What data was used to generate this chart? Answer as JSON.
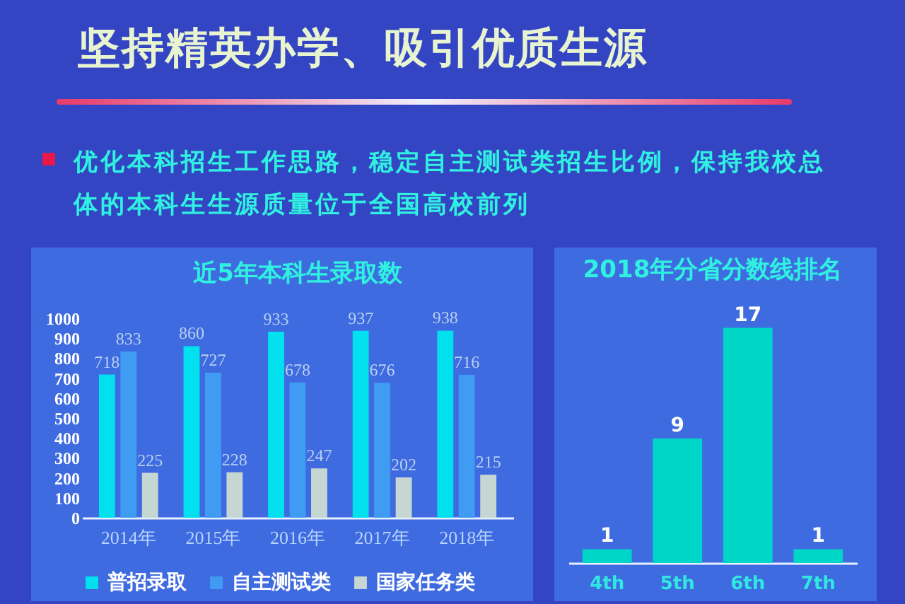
{
  "chart_data": [
    {
      "type": "other",
      "title": "坚持精英办学、吸引优质生源",
      "annotations": [
        "优化本科招生工作思路，稳定自主测试类招生比例，保持我校总体的本科生生源质量位于全国高校前列"
      ]
    },
    {
      "type": "bar",
      "title": "近5年本科生录取数",
      "categories": [
        "2014年",
        "2015年",
        "2016年",
        "2017年",
        "2018年"
      ],
      "series": [
        {
          "name": "普招录取",
          "color": "#00e0ee",
          "values": [
            718,
            860,
            933,
            937,
            938
          ]
        },
        {
          "name": "自主测试类",
          "color": "#3f9cf2",
          "values": [
            833,
            727,
            678,
            676,
            716
          ]
        },
        {
          "name": "国家任务类",
          "color": "#c6d6d2",
          "values": [
            225,
            228,
            247,
            202,
            215
          ]
        }
      ],
      "ylim": [
        0,
        1000
      ],
      "yticks": [
        0,
        100,
        200,
        300,
        400,
        500,
        600,
        700,
        800,
        900,
        1000
      ],
      "legend": "bottom",
      "data_labels": true
    },
    {
      "type": "bar",
      "title": "2018年分省分数线排名",
      "categories": [
        "4th",
        "5th",
        "6th",
        "7th"
      ],
      "values": [
        1,
        9,
        17,
        1
      ],
      "color": "#00d6c8",
      "data_labels": true,
      "tick_labels": "x"
    }
  ]
}
